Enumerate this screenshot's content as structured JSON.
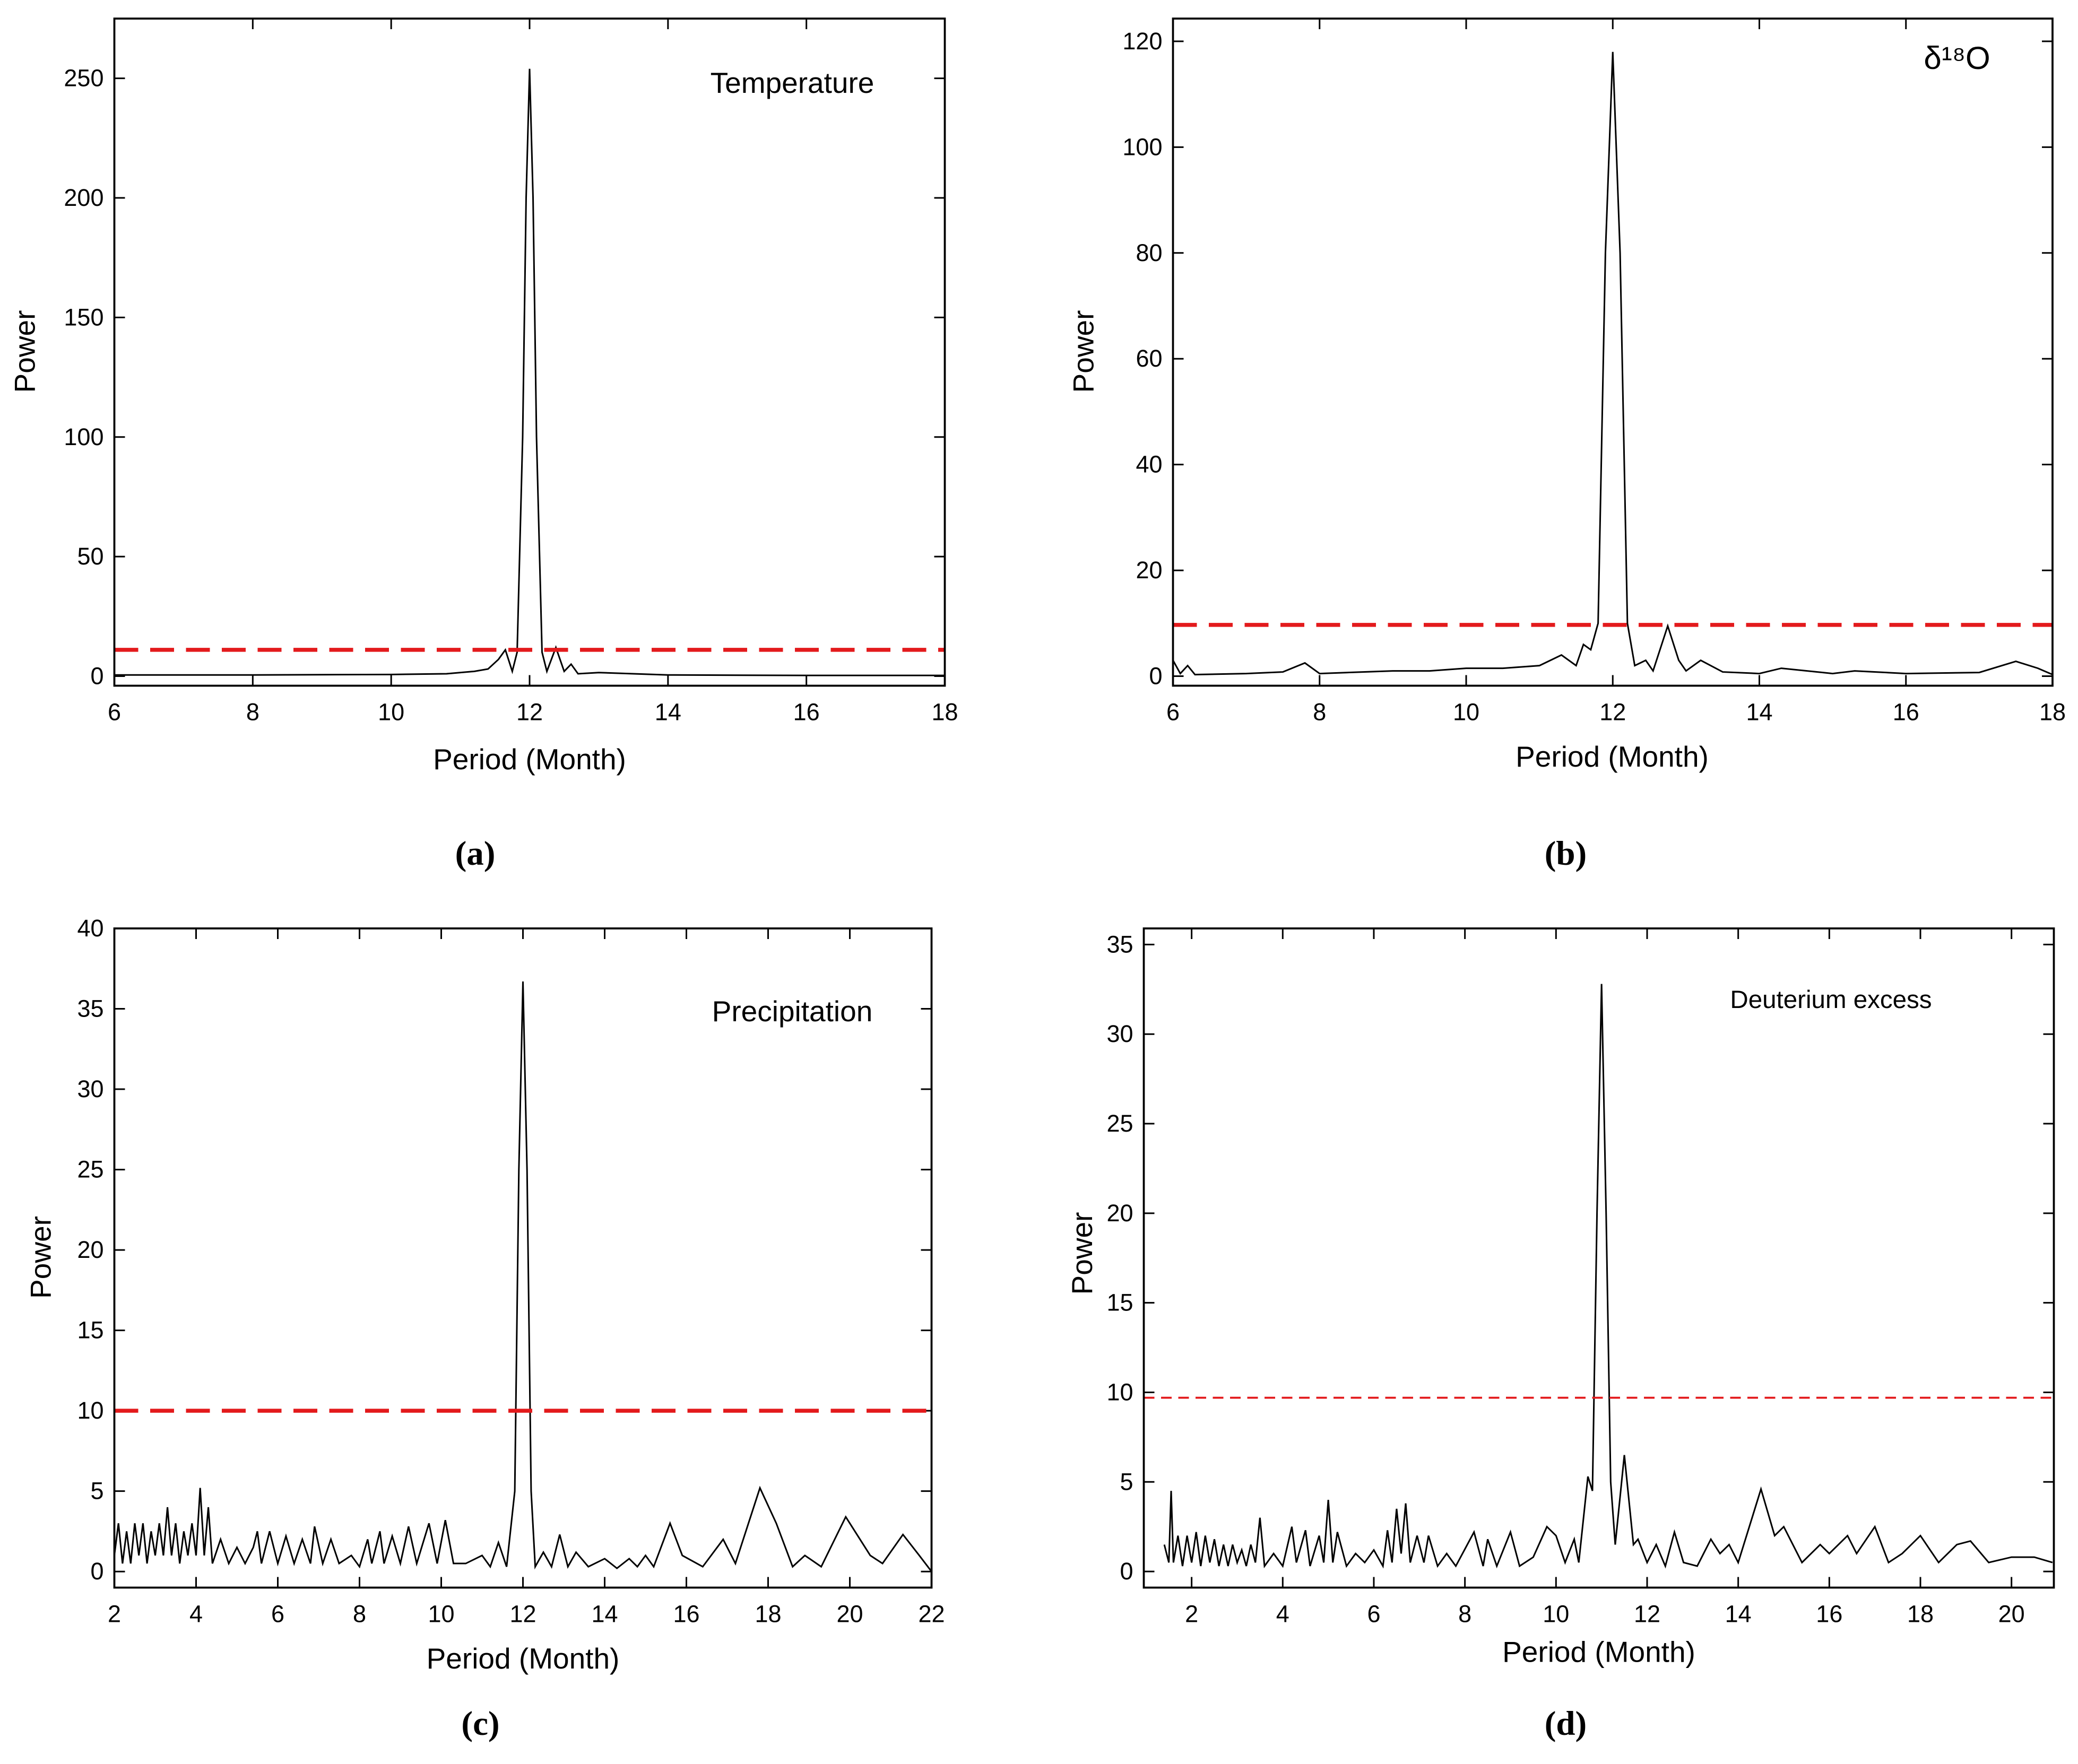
{
  "chart_data": [
    {
      "type": "line",
      "annotation": "Temperature",
      "panel_label": "(a)",
      "x_label": "Period (Month)",
      "y_label": "Power",
      "color": "#000000",
      "threshold": 11,
      "threshold_color": "#e31a1c",
      "xlim": [
        6,
        18
      ],
      "xticks": [
        6,
        8,
        10,
        12,
        14,
        16,
        18
      ],
      "ylim": [
        -4,
        275
      ],
      "yticks": [
        0,
        50,
        100,
        150,
        200,
        250
      ],
      "x": [
        6,
        8,
        10,
        10.8,
        11.2,
        11.4,
        11.55,
        11.65,
        11.75,
        11.82,
        11.9,
        11.95,
        12.0,
        12.05,
        12.1,
        12.18,
        12.25,
        12.38,
        12.5,
        12.6,
        12.7,
        13,
        13.5,
        14,
        16,
        18
      ],
      "values": [
        0.5,
        0.5,
        0.7,
        1,
        2,
        3,
        7,
        11,
        2,
        10,
        100,
        200,
        254,
        200,
        100,
        10,
        2,
        12,
        2,
        5,
        1,
        1.5,
        1,
        0.5,
        0.3,
        0.3
      ]
    },
    {
      "type": "line",
      "annotation": "δ¹⁸O",
      "panel_label": "(b)",
      "x_label": "Period (Month)",
      "y_label": "Power",
      "color": "#000000",
      "threshold": 9.7,
      "threshold_color": "#e31a1c",
      "xlim": [
        6,
        18
      ],
      "xticks": [
        6,
        8,
        10,
        12,
        14,
        16,
        18
      ],
      "ylim": [
        -1.8,
        124.3
      ],
      "yticks": [
        0,
        20,
        40,
        60,
        80,
        100,
        120
      ],
      "x": [
        6,
        6.1,
        6.2,
        6.3,
        7,
        7.5,
        7.8,
        8,
        9,
        9.5,
        10,
        10.5,
        11,
        11.3,
        11.5,
        11.6,
        11.7,
        11.8,
        11.9,
        12.0,
        12.1,
        12.2,
        12.3,
        12.45,
        12.55,
        12.75,
        12.9,
        13.0,
        13.2,
        13.5,
        14,
        14.3,
        15,
        15.3,
        16,
        17,
        17.5,
        17.8,
        18
      ],
      "values": [
        3,
        0.5,
        2,
        0.3,
        0.5,
        0.8,
        2.5,
        0.5,
        1,
        1,
        1.5,
        1.5,
        2,
        4,
        2,
        6,
        5,
        10,
        80,
        118,
        80,
        10,
        2,
        3,
        1,
        9.5,
        3,
        1,
        3,
        0.8,
        0.5,
        1.5,
        0.5,
        1,
        0.5,
        0.7,
        2.8,
        1.5,
        0.3
      ]
    },
    {
      "type": "line",
      "annotation": "Precipitation",
      "panel_label": "(c)",
      "x_label": "Period (Month)",
      "y_label": "Power",
      "color": "#000000",
      "threshold": 10,
      "threshold_color": "#e31a1c",
      "xlim": [
        2,
        22
      ],
      "xticks": [
        2,
        4,
        6,
        8,
        10,
        12,
        14,
        16,
        18,
        20,
        22
      ],
      "ylim": [
        -1,
        40
      ],
      "yticks": [
        0,
        5,
        10,
        15,
        20,
        25,
        30,
        35,
        40
      ],
      "x": [
        2,
        2.1,
        2.2,
        2.3,
        2.4,
        2.5,
        2.6,
        2.7,
        2.8,
        2.9,
        3.0,
        3.1,
        3.2,
        3.3,
        3.4,
        3.5,
        3.6,
        3.7,
        3.8,
        3.9,
        4.0,
        4.1,
        4.2,
        4.3,
        4.4,
        4.6,
        4.8,
        5,
        5.2,
        5.4,
        5.5,
        5.6,
        5.8,
        6,
        6.2,
        6.4,
        6.6,
        6.8,
        6.9,
        7.1,
        7.3,
        7.5,
        7.8,
        8,
        8.2,
        8.3,
        8.5,
        8.6,
        8.8,
        9,
        9.2,
        9.4,
        9.7,
        9.9,
        10.1,
        10.3,
        10.6,
        11,
        11.2,
        11.4,
        11.6,
        11.8,
        11.9,
        12.0,
        12.1,
        12.2,
        12.3,
        12.5,
        12.7,
        12.9,
        13.1,
        13.3,
        13.6,
        14,
        14.3,
        14.6,
        14.8,
        15,
        15.2,
        15.6,
        15.9,
        16.4,
        16.9,
        17.2,
        17.8,
        18.2,
        18.6,
        18.9,
        19.3,
        19.9,
        20.5,
        20.8,
        21.3,
        21.7,
        22
      ],
      "values": [
        1,
        3,
        0.5,
        2.5,
        0.5,
        3,
        1,
        3,
        0.5,
        2.5,
        1,
        3,
        1,
        4,
        1,
        3,
        0.5,
        2.5,
        1,
        3,
        1,
        5.2,
        1,
        4,
        0.5,
        2,
        0.5,
        1.5,
        0.5,
        1.5,
        2.5,
        0.5,
        2.5,
        0.5,
        2.2,
        0.5,
        2,
        0.5,
        2.8,
        0.5,
        2,
        0.5,
        1,
        0.3,
        2,
        0.5,
        2.5,
        0.5,
        2.2,
        0.5,
        2.8,
        0.5,
        3,
        0.5,
        3.2,
        0.5,
        0.5,
        1,
        0.3,
        1.8,
        0.3,
        5,
        25,
        36.7,
        25,
        5,
        0.3,
        1.2,
        0.3,
        2.3,
        0.3,
        1.2,
        0.3,
        0.8,
        0.2,
        0.8,
        0.3,
        1,
        0.3,
        3,
        1,
        0.3,
        2,
        0.5,
        5.2,
        3,
        0.3,
        1,
        0.3,
        3.4,
        1,
        0.5,
        2.3,
        1,
        0
      ]
    },
    {
      "type": "line",
      "annotation": "Deuterium excess",
      "panel_label": "(d)",
      "x_label": "Period (Month)",
      "y_label": "Power",
      "color": "#000000",
      "threshold": 9.7,
      "threshold_color": "#e31a1c",
      "xlim": [
        0.95,
        20.93
      ],
      "xticks": [
        2,
        4,
        6,
        8,
        10,
        12,
        14,
        16,
        18,
        20
      ],
      "ylim": [
        -0.9,
        35.9
      ],
      "yticks": [
        0,
        5,
        10,
        15,
        20,
        25,
        30,
        35
      ],
      "x": [
        1.4,
        1.5,
        1.55,
        1.6,
        1.7,
        1.8,
        1.9,
        2,
        2.1,
        2.2,
        2.3,
        2.4,
        2.5,
        2.6,
        2.7,
        2.8,
        2.9,
        3,
        3.1,
        3.2,
        3.3,
        3.4,
        3.5,
        3.6,
        3.8,
        4,
        4.2,
        4.3,
        4.5,
        4.6,
        4.8,
        4.9,
        5,
        5.1,
        5.2,
        5.4,
        5.6,
        5.8,
        6,
        6.2,
        6.3,
        6.4,
        6.5,
        6.6,
        6.7,
        6.8,
        6.95,
        7.1,
        7.2,
        7.4,
        7.6,
        7.8,
        8.2,
        8.4,
        8.5,
        8.7,
        9,
        9.2,
        9.5,
        9.8,
        10,
        10.2,
        10.4,
        10.5,
        10.7,
        10.8,
        10.9,
        11.0,
        11.1,
        11.2,
        11.3,
        11.5,
        11.7,
        11.8,
        12,
        12.2,
        12.4,
        12.6,
        12.8,
        13.1,
        13.4,
        13.6,
        13.8,
        14,
        14.5,
        14.8,
        15,
        15.4,
        15.8,
        16,
        16.4,
        16.6,
        17,
        17.3,
        17.6,
        18,
        18.4,
        18.8,
        19.1,
        19.5,
        20,
        20.5,
        20.9
      ],
      "values": [
        1.5,
        0.5,
        4.5,
        0.5,
        2,
        0.3,
        2,
        0.5,
        2.2,
        0.3,
        2,
        0.5,
        1.8,
        0.3,
        1.5,
        0.3,
        1.5,
        0.5,
        1.2,
        0.3,
        1.5,
        0.5,
        3,
        0.3,
        1,
        0.3,
        2.5,
        0.5,
        2.3,
        0.3,
        2,
        0.5,
        4,
        0.5,
        2.2,
        0.3,
        1,
        0.5,
        1.2,
        0.3,
        2.3,
        0.5,
        3.5,
        1,
        3.8,
        0.5,
        2,
        0.5,
        2,
        0.3,
        1,
        0.3,
        2.2,
        0.3,
        1.8,
        0.3,
        2.2,
        0.3,
        0.8,
        2.5,
        2,
        0.5,
        1.8,
        0.5,
        5.3,
        4.5,
        20,
        32.8,
        20,
        5,
        1.5,
        6.5,
        1.5,
        1.8,
        0.5,
        1.5,
        0.3,
        2.2,
        0.5,
        0.3,
        1.8,
        1,
        1.5,
        0.5,
        4.6,
        2,
        2.5,
        0.5,
        1.5,
        1,
        2,
        1,
        2.5,
        0.5,
        1,
        2,
        0.5,
        1.5,
        1.7,
        0.5,
        0.8,
        0.8,
        0.5
      ]
    }
  ]
}
